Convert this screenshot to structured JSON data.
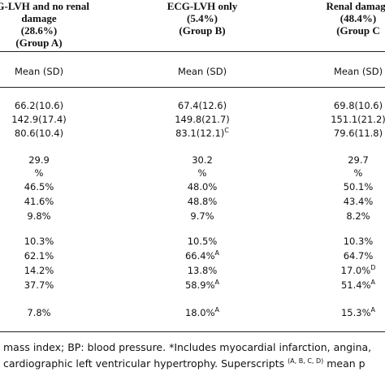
{
  "header": {
    "columns": [
      {
        "lines": [
          "CG-LVH and no renal",
          "damage",
          "(28.6%)",
          "(Group A)"
        ]
      },
      {
        "lines": [
          "ECG-LVH only",
          "(5.4%)",
          "(Group B)"
        ]
      },
      {
        "lines": [
          "Renal damage",
          "(48.4%)",
          "(Group C"
        ]
      }
    ]
  },
  "subheader": [
    "Mean (SD)",
    "Mean (SD)",
    "Mean (SD)"
  ],
  "rows": [
    [
      {
        "text": "66.2(10.6)"
      },
      {
        "text": "67.4(12.6)"
      },
      {
        "text": "69.8(10.6)"
      }
    ],
    [
      {
        "text": "142.9(17.4)"
      },
      {
        "text": "149.8(21.7)"
      },
      {
        "text": "151.1(21.2)"
      }
    ],
    [
      {
        "text": "80.6(10.4)"
      },
      {
        "text": "83.1(12.1)",
        "sup": "C"
      },
      {
        "text": "79.6(11.8)"
      }
    ],
    [
      {
        "text": "29.9"
      },
      {
        "text": "30.2"
      },
      {
        "text": "29.7"
      }
    ],
    [
      {
        "text": "%"
      },
      {
        "text": "%"
      },
      {
        "text": "%"
      }
    ],
    [
      {
        "text": "46.5%"
      },
      {
        "text": "48.0%"
      },
      {
        "text": "50.1%"
      }
    ],
    [
      {
        "text": "41.6%"
      },
      {
        "text": "48.8%"
      },
      {
        "text": "43.4%"
      }
    ],
    [
      {
        "text": "9.8%"
      },
      {
        "text": "9.7%"
      },
      {
        "text": "8.2%"
      }
    ],
    [
      {
        "text": "10.3%"
      },
      {
        "text": "10.5%"
      },
      {
        "text": "10.3%"
      }
    ],
    [
      {
        "text": "62.1%"
      },
      {
        "text": "66.4%",
        "sup": "A"
      },
      {
        "text": "64.7%"
      }
    ],
    [
      {
        "text": "14.2%"
      },
      {
        "text": "13.8%"
      },
      {
        "text": "17.0%",
        "sup": "D"
      }
    ],
    [
      {
        "text": "37.7%"
      },
      {
        "text": "58.9%",
        "sup": "A"
      },
      {
        "text": "51.4%",
        "sup": "A"
      }
    ],
    [
      {
        "text": "7.8%"
      },
      {
        "text": "18.0%",
        "sup": "A"
      },
      {
        "text": "15.3%",
        "sup": "A"
      }
    ]
  ],
  "footnote": {
    "line1": "mass index; BP: blood pressure. *Includes myocardial infarction, angina,",
    "line2": {
      "before": "cardiographic left ventricular hypertrophy. Superscripts ",
      "sup": "(A, B, C, D)",
      "after": " mean p"
    }
  }
}
